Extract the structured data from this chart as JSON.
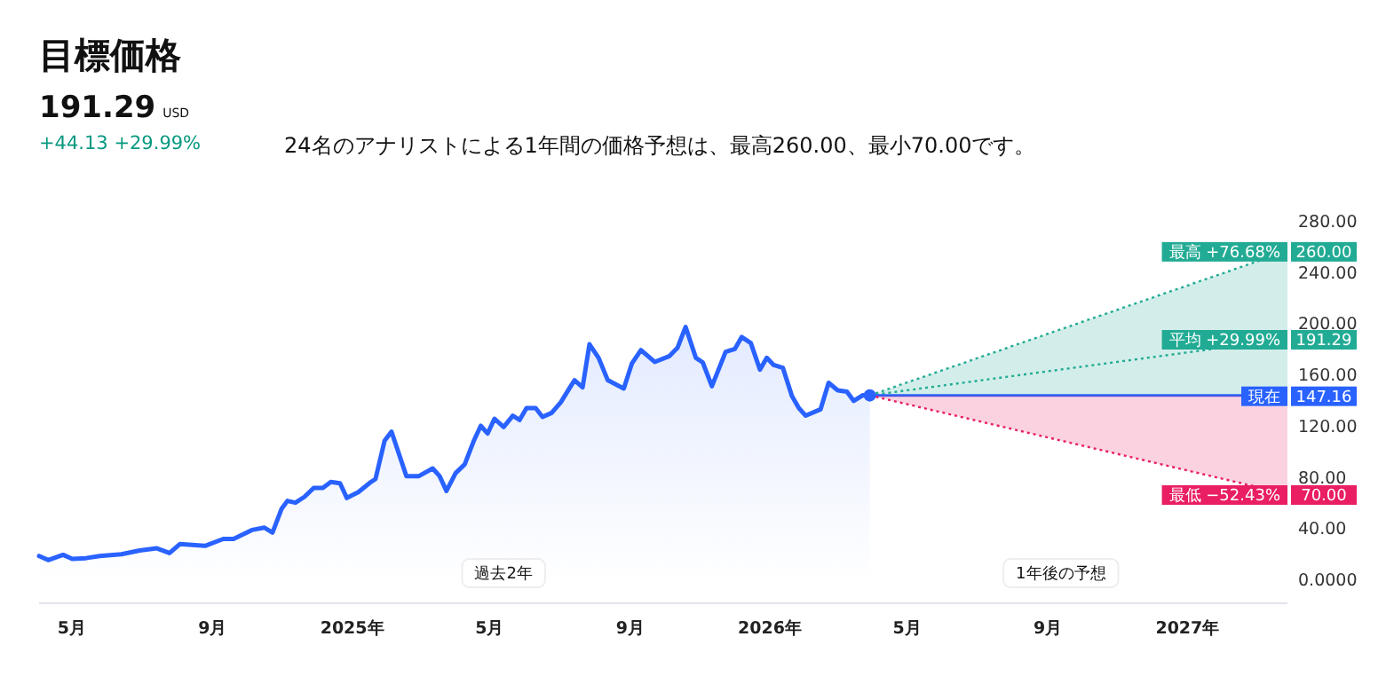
{
  "chart_data": {
    "type": "area",
    "title": "目標価格",
    "subtitle": "191.29",
    "annotations": [
      "USD",
      "+44.13  +29.99%",
      "24名のアナリストによる1年間の価格予想は、最高260.00、最小70.00です。",
      "過去2年",
      "1年後の予想"
    ],
    "xticks": [
      {
        "value": "2024-05-01",
        "label": "5月"
      },
      {
        "value": "2024-09-01",
        "label": "9月"
      },
      {
        "value": "2025-01-01",
        "label": "2025年"
      },
      {
        "value": "2025-05-01",
        "label": "5月"
      },
      {
        "value": "2025-09-01",
        "label": "9月"
      },
      {
        "value": "2026-01-01",
        "label": "2026年"
      },
      {
        "value": "2026-05-01",
        "label": "5月"
      },
      {
        "value": "2026-09-01",
        "label": "9月"
      },
      {
        "value": "2027-01-01",
        "label": "2027年"
      }
    ],
    "xlim": [
      "2024-04-02",
      "2027-03-29"
    ],
    "ylim": [
      0,
      280
    ],
    "yticks": [
      {
        "value": 0,
        "label": "0.0000"
      },
      {
        "value": 40,
        "label": "40.00"
      },
      {
        "value": 80,
        "label": "80.00"
      },
      {
        "value": 120,
        "label": "120.00"
      },
      {
        "value": 160,
        "label": "160.00"
      },
      {
        "value": 200,
        "label": "200.00"
      },
      {
        "value": 240,
        "label": "240.00"
      },
      {
        "value": 280,
        "label": "280.00"
      }
    ],
    "grid": false,
    "legend": "right",
    "series": [
      {
        "color": "#2962ff",
        "x": [
          "2024-04-02",
          "2024-04-10",
          "2024-04-23",
          "2024-05-01",
          "2024-05-13",
          "2024-05-25",
          "2024-06-13",
          "2024-06-29",
          "2024-07-14",
          "2024-07-25",
          "2024-08-03",
          "2024-08-25",
          "2024-09-10",
          "2024-09-19",
          "2024-10-05",
          "2024-10-16",
          "2024-10-23",
          "2024-10-31",
          "2024-11-05",
          "2024-11-12",
          "2024-11-20",
          "2024-11-28",
          "2024-12-06",
          "2024-12-13",
          "2024-12-21",
          "2024-12-27",
          "2025-01-06",
          "2025-01-17",
          "2025-01-21",
          "2025-01-29",
          "2025-02-04",
          "2025-02-17",
          "2025-02-28",
          "2025-03-12",
          "2025-03-18",
          "2025-03-24",
          "2025-04-01",
          "2025-04-09",
          "2025-04-17",
          "2025-04-23",
          "2025-04-29",
          "2025-05-05",
          "2025-05-13",
          "2025-05-21",
          "2025-05-27",
          "2025-06-02",
          "2025-06-10",
          "2025-06-16",
          "2025-06-24",
          "2025-07-02",
          "2025-07-10",
          "2025-07-14",
          "2025-07-21",
          "2025-07-27",
          "2025-08-04",
          "2025-08-12",
          "2025-08-26",
          "2025-09-02",
          "2025-09-10",
          "2025-09-22",
          "2025-10-05",
          "2025-10-12",
          "2025-10-19",
          "2025-10-28",
          "2025-11-03",
          "2025-11-11",
          "2025-11-23",
          "2025-12-01",
          "2025-12-07",
          "2025-12-15",
          "2025-12-23",
          "2025-12-29",
          "2026-01-04",
          "2026-01-12",
          "2026-01-20",
          "2026-01-26",
          "2026-02-01",
          "2026-02-14",
          "2026-02-21",
          "2026-03-01",
          "2026-03-09",
          "2026-03-15",
          "2026-03-23",
          "2026-03-29"
        ],
        "values": [
          21.7,
          18.5,
          22.6,
          19.4,
          20,
          21.7,
          23,
          26,
          27.7,
          24,
          31,
          29.6,
          35,
          35,
          42,
          43.8,
          40,
          58.6,
          64.7,
          63.3,
          67.9,
          74.9,
          74.9,
          79.5,
          78.5,
          67,
          71.6,
          79.5,
          81.8,
          111.8,
          118.8,
          84.1,
          84.1,
          90.1,
          84.1,
          72.5,
          86.4,
          93.3,
          111.8,
          123.4,
          117.4,
          128.9,
          122.4,
          131.3,
          128,
          137.2,
          137.2,
          130.3,
          133.5,
          141.8,
          153.4,
          159,
          153.4,
          187.1,
          176.5,
          159,
          152.5,
          171.9,
          182.6,
          173.3,
          177.9,
          184.4,
          200.6,
          176.5,
          172.9,
          154.3,
          181.2,
          183.4,
          192.7,
          188.1,
          167.3,
          176.5,
          170.9,
          168.7,
          146.5,
          137.2,
          131.3,
          136.3,
          157,
          151.1,
          150.1,
          142.8,
          147.3,
          147.16
        ]
      },
      {
        "type": "area",
        "name": "最高 +76.68%",
        "color": "#22ab94",
        "line_style": "dotted",
        "x": [
          "2026-03-29",
          "2027-03-29"
        ],
        "values": [
          147.16,
          260
        ],
        "value_labels": [
          null,
          "260.00"
        ]
      },
      {
        "type": "line",
        "name": "平均 +29.99%",
        "color": "#22ab94",
        "line_style": "dotted",
        "x": [
          "2026-03-29",
          "2027-03-29"
        ],
        "values": [
          147.16,
          191.29
        ],
        "value_labels": [
          null,
          "191.29"
        ]
      },
      {
        "type": "line",
        "name": "現在",
        "color": "#2962ff",
        "line_style": "solid",
        "x": [
          "2026-03-29",
          "2027-03-29"
        ],
        "values": [
          147.16,
          147.16
        ],
        "value_labels": [
          null,
          "147.16"
        ]
      },
      {
        "type": "area",
        "name": "最低 −52.43%",
        "color": "#e91e63",
        "line_style": "dotted",
        "x": [
          "2026-03-29",
          "2027-03-29"
        ],
        "values": [
          147.16,
          70
        ],
        "value_labels": [
          null,
          "70.00"
        ]
      }
    ]
  }
}
